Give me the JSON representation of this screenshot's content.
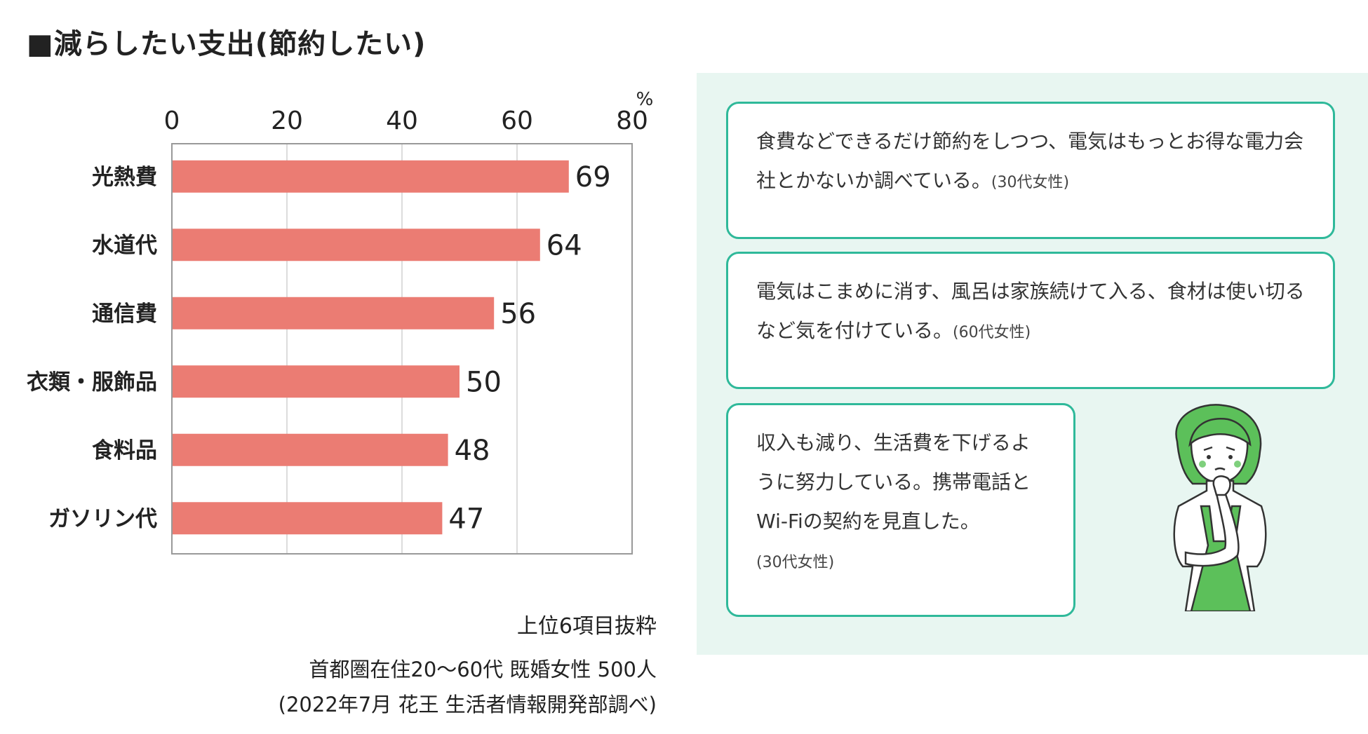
{
  "title": "■減らしたい支出(節約したい)",
  "chart_data": {
    "type": "bar",
    "orientation": "horizontal",
    "categories": [
      "光熱費",
      "水道代",
      "通信費",
      "衣類・服飾品",
      "食料品",
      "ガソリン代"
    ],
    "values": [
      69,
      64,
      56,
      50,
      48,
      47
    ],
    "xlim": [
      0,
      80
    ],
    "xticks": [
      "0",
      "20",
      "40",
      "60",
      "80"
    ],
    "unit": "%",
    "grid": true,
    "bar_color": "#eb7c73"
  },
  "source": {
    "note": "上位6項目抜粋",
    "line1": "首都圏在住20〜60代 既婚女性 500人",
    "line2": "(2022年7月 花王 生活者情報開発部調べ)"
  },
  "comments": [
    {
      "text": "食費などできるだけ節約をしつつ、電気はもっとお得な電力会社とかないか調べている。",
      "attribution": "(30代女性)"
    },
    {
      "text": "電気はこまめに消す、風呂は家族続けて入る、食材は使い切るなど気を付けている。",
      "attribution": "(60代女性)"
    },
    {
      "text": "収入も減り、生活費を下げるように努力している。携帯電話とWi-Fiの契約を見直した。",
      "attribution": "(30代女性)"
    }
  ],
  "colors": {
    "bar": "#eb7c73",
    "bubble_border": "#2fb99a",
    "panel_bg": "#e8f6f1",
    "figure_green": "#5cc05a"
  }
}
